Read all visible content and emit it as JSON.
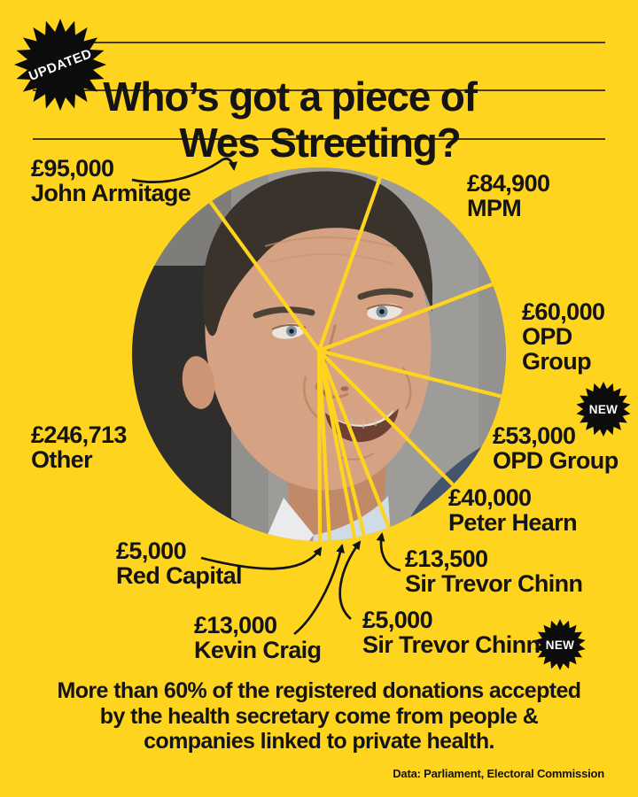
{
  "badges": {
    "updated": "UPDATED",
    "new": "NEW"
  },
  "title": {
    "line1": "Who’s got a piece of",
    "line2": "Wes Streeting?"
  },
  "chart_data": {
    "type": "pie",
    "title": "Who’s got a piece of Wes Streeting?",
    "unit": "GBP",
    "total": 616113,
    "start_angle_deg": 126.1,
    "legend_position": "around-chart",
    "slices": [
      {
        "label": "John Armitage",
        "amount": "£95,000",
        "value": 95000,
        "is_new": false
      },
      {
        "label": "MPM",
        "amount": "£84,900",
        "value": 84900,
        "is_new": false
      },
      {
        "label": "OPD Group",
        "amount": "£60,000",
        "value": 60000,
        "is_new": false
      },
      {
        "label": "OPD Group",
        "amount": "£53,000",
        "value": 53000,
        "is_new": true
      },
      {
        "label": "Peter Hearn",
        "amount": "£40,000",
        "value": 40000,
        "is_new": false
      },
      {
        "label": "Sir Trevor Chinn",
        "amount": "£13,500",
        "value": 13500,
        "is_new": false
      },
      {
        "label": "Sir Trevor Chinn",
        "amount": "£5,000",
        "value": 5000,
        "is_new": true
      },
      {
        "label": "Kevin Craig",
        "amount": "£13,000",
        "value": 13000,
        "is_new": false
      },
      {
        "label": "Red Capital",
        "amount": "£5,000",
        "value": 5000,
        "is_new": false
      },
      {
        "label": "Other",
        "amount": "£246,713",
        "value": 246713,
        "is_new": false
      }
    ]
  },
  "footer": {
    "line1": "More than 60% of the registered donations accepted",
    "line2": "by the health secretary come from people &",
    "line3": "companies linked to private health."
  },
  "source": "Data: Parliament, Electoral Commission",
  "colors": {
    "background": "#FFD41E",
    "ink": "#141414",
    "badge_fill": "#0C0C0C",
    "badge_text": "#FFFFFF",
    "slice_divider": "#FFD41E"
  }
}
